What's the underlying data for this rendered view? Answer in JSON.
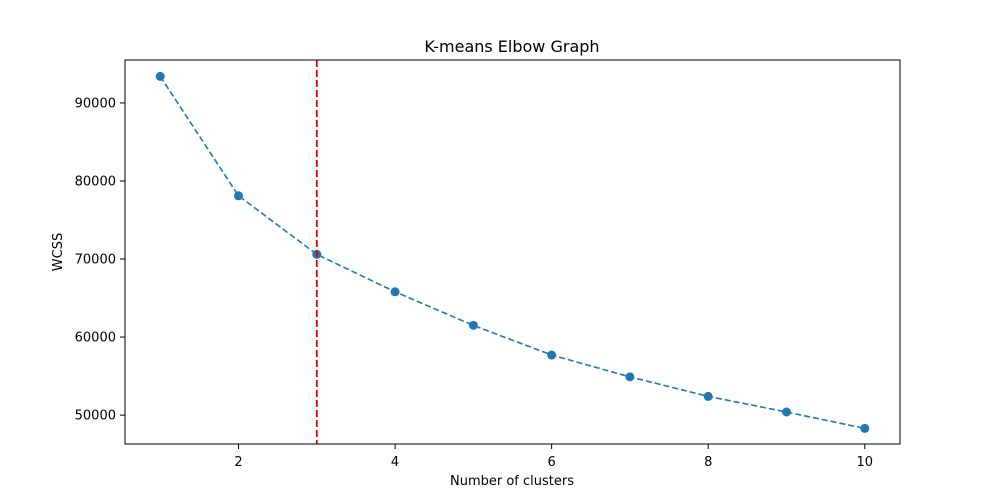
{
  "chart_data": {
    "type": "line",
    "title": "K-means Elbow Graph",
    "xlabel": "Number of clusters",
    "ylabel": "WCSS",
    "x": [
      1,
      2,
      3,
      4,
      5,
      6,
      7,
      8,
      9,
      10
    ],
    "series": [
      {
        "values": [
          93400,
          78100,
          70600,
          65800,
          61500,
          57700,
          54900,
          52400,
          50400,
          48300
        ],
        "color": "#1f77b4",
        "line_style": "dashed",
        "marker": "circle"
      }
    ],
    "reference_line": {
      "axis": "x",
      "value": 3,
      "color": "#e00000",
      "line_style": "dashed"
    },
    "xlim": [
      0.55,
      10.45
    ],
    "ylim": [
      46300,
      95500
    ],
    "xticks": [
      2,
      4,
      6,
      8,
      10
    ],
    "yticks": [
      50000,
      60000,
      70000,
      80000,
      90000
    ],
    "grid": false
  }
}
